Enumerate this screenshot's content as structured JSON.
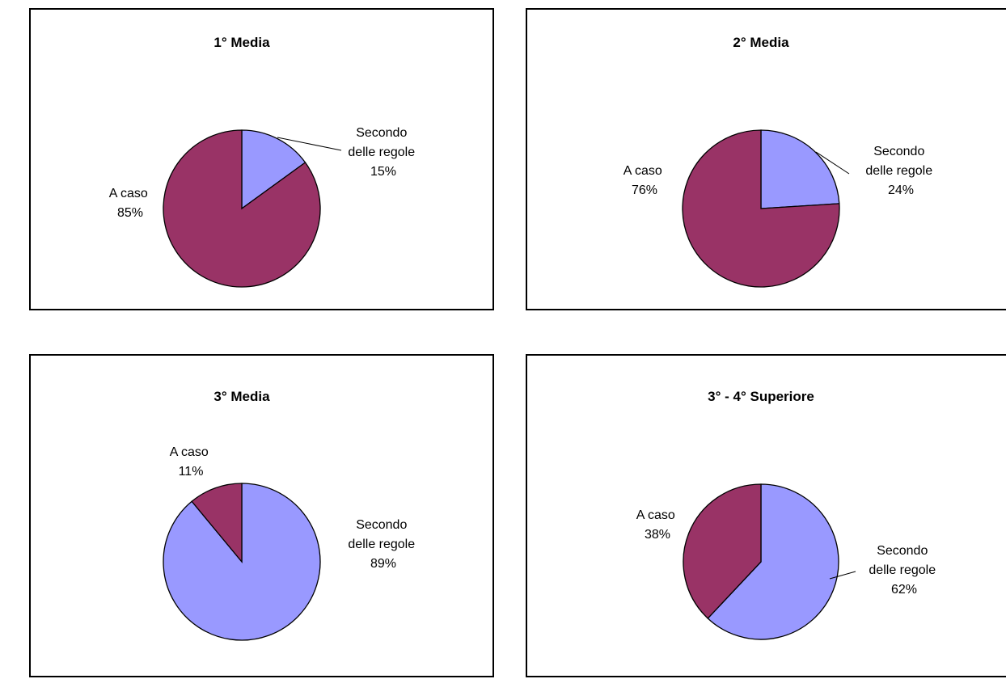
{
  "chart_data": [
    {
      "type": "pie",
      "title": "1° Media",
      "slices": [
        {
          "label": "Secondo delle regole",
          "value": 15,
          "percent_label": "15%",
          "color": "#9999FF"
        },
        {
          "label": "A caso",
          "value": 85,
          "percent_label": "85%",
          "color": "#993366"
        }
      ]
    },
    {
      "type": "pie",
      "title": "2° Media",
      "slices": [
        {
          "label": "Secondo delle regole",
          "value": 24,
          "percent_label": "24%",
          "color": "#9999FF"
        },
        {
          "label": "A caso",
          "value": 76,
          "percent_label": "76%",
          "color": "#993366"
        }
      ]
    },
    {
      "type": "pie",
      "title": "3° Media",
      "slices": [
        {
          "label": "Secondo delle regole",
          "value": 89,
          "percent_label": "89%",
          "color": "#9999FF"
        },
        {
          "label": "A caso",
          "value": 11,
          "percent_label": "11%",
          "color": "#993366"
        }
      ]
    },
    {
      "type": "pie",
      "title": "3° - 4° Superiore",
      "slices": [
        {
          "label": "Secondo delle regole",
          "value": 62,
          "percent_label": "62%",
          "color": "#9999FF"
        },
        {
          "label": "A caso",
          "value": 38,
          "percent_label": "38%",
          "color": "#993366"
        }
      ]
    }
  ]
}
